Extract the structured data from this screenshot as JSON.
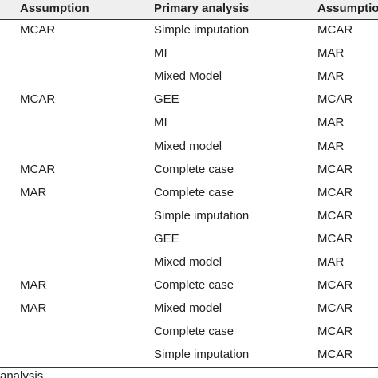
{
  "table": {
    "header": [
      "Assumption",
      "Primary analysis",
      "Assumptio"
    ],
    "rows": [
      [
        "MCAR",
        "Simple imputation",
        "MCAR"
      ],
      [
        null,
        "MI",
        "MAR"
      ],
      [
        null,
        "Mixed Model",
        "MAR"
      ],
      [
        "MCAR",
        "GEE",
        "MCAR"
      ],
      [
        null,
        "MI",
        "MAR"
      ],
      [
        null,
        "Mixed model",
        "MAR"
      ],
      [
        "MCAR",
        "Complete case",
        "MCAR"
      ],
      [
        "MAR",
        "Complete case",
        "MCAR"
      ],
      [
        null,
        "Simple imputation",
        "MCAR"
      ],
      [
        null,
        "GEE",
        "MCAR"
      ],
      [
        null,
        "Mixed model",
        "MAR"
      ],
      [
        "MAR",
        "Complete case",
        "MCAR"
      ],
      [
        "MAR",
        "Mixed model",
        "MCAR"
      ],
      [
        null,
        "Complete case",
        "MCAR"
      ],
      [
        null,
        "Simple imputation",
        "MCAR"
      ]
    ],
    "footnote": "analysis"
  }
}
